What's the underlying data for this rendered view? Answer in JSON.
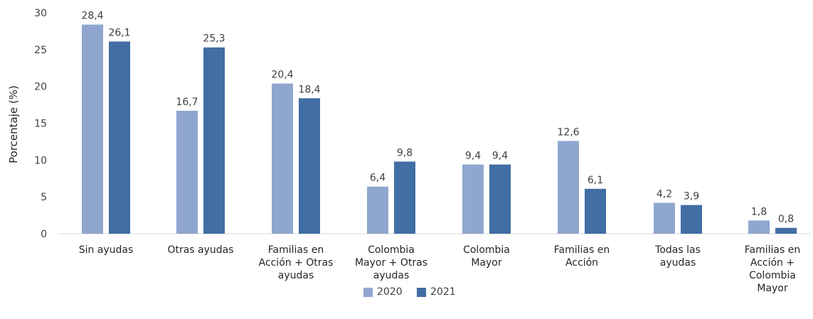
{
  "chart_data": {
    "type": "bar",
    "ylabel": "Porcentaje (%)",
    "ylim": [
      0,
      30
    ],
    "yticks": [
      "0",
      "5",
      "10",
      "15",
      "20",
      "25",
      "30"
    ],
    "categories": [
      [
        "Sin ayudas"
      ],
      [
        "Otras ayudas"
      ],
      [
        "Familias en",
        "Acción + Otras",
        "ayudas"
      ],
      [
        "Colombia",
        "Mayor + Otras",
        "ayudas"
      ],
      [
        "Colombia",
        "Mayor"
      ],
      [
        "Familias en",
        "Acción"
      ],
      [
        "Todas las",
        "ayudas"
      ],
      [
        "Familias en",
        "Acción +",
        "Colombia",
        "Mayor"
      ]
    ],
    "series": [
      {
        "name": "2020",
        "color": "#8fa7cf",
        "values": [
          28.4,
          16.7,
          20.4,
          6.4,
          9.4,
          12.6,
          4.2,
          1.8
        ],
        "labels": [
          "28,4",
          "16,7",
          "20,4",
          "6,4",
          "9,4",
          "12,6",
          "4,2",
          "1,8"
        ]
      },
      {
        "name": "2021",
        "color": "#416ea4",
        "values": [
          26.1,
          25.3,
          18.4,
          9.8,
          9.4,
          6.1,
          3.9,
          0.8
        ],
        "labels": [
          "26,1",
          "25,3",
          "18,4",
          "9,8",
          "9,4",
          "6,1",
          "3,9",
          "0,8"
        ]
      }
    ],
    "legend": "bottom",
    "grid": false
  }
}
